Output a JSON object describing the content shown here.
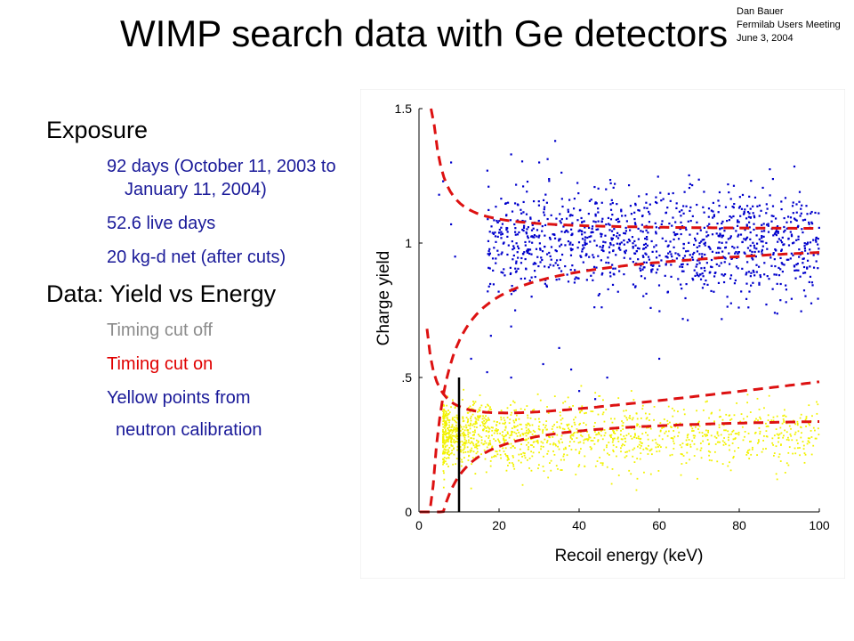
{
  "header": {
    "title": "WIMP search data with Ge detectors",
    "author": "Dan Bauer",
    "event": "Fermilab Users Meeting",
    "date": "June 3, 2004"
  },
  "bullets": {
    "exposure_heading": "Exposure",
    "exposure_items": [
      "92 days (October 11, 2003 to  January 11, 2004)",
      "52.6 live days",
      "20 kg-d net (after cuts)"
    ],
    "data_heading": "Data: Yield vs Energy",
    "timing_off": "Timing cut off",
    "timing_on": "Timing cut on",
    "yellow_line1": "Yellow points from",
    "yellow_line2": "neutron calibration"
  },
  "colors": {
    "heading": "#000000",
    "blue_text": "#1a1a99",
    "gray_text": "#8c8c8c",
    "red_text": "#e00000",
    "electron_points": "#0000cc",
    "neutron_points": "#f2f200",
    "band_lines": "#dd1111",
    "threshold_line": "#000000"
  },
  "chart_data": {
    "type": "scatter",
    "title": "",
    "xlabel": "Recoil energy (keV)",
    "ylabel": "Charge yield",
    "xlim": [
      0,
      100
    ],
    "ylim": [
      0,
      1.5
    ],
    "xticks": [
      "0",
      "20",
      "40",
      "60",
      "80",
      "100"
    ],
    "yticks": [
      "0",
      ".5",
      "1",
      "1.5"
    ],
    "grid": false,
    "threshold_keV": 10,
    "series": [
      {
        "kind": "points",
        "color": "#0000cc",
        "values": [
          {
            "x": 34,
            "y": 1.38
          },
          {
            "x": 23,
            "y": 1.33
          },
          {
            "x": 30,
            "y": 1.3
          },
          {
            "x": 6,
            "y": 1.23
          },
          {
            "x": 8,
            "y": 1.07
          },
          {
            "x": 9,
            "y": 0.95
          },
          {
            "x": 24,
            "y": 0.75
          },
          {
            "x": 23,
            "y": 0.69
          },
          {
            "x": 35,
            "y": 0.61
          },
          {
            "x": 31,
            "y": 0.55
          },
          {
            "x": 38,
            "y": 0.53
          },
          {
            "x": 23,
            "y": 0.5
          },
          {
            "x": 47,
            "y": 0.5
          },
          {
            "x": 40,
            "y": 0.45
          },
          {
            "x": 13,
            "y": 0.57
          },
          {
            "x": 17,
            "y": 0.52
          },
          {
            "x": 60,
            "y": 0.57
          },
          {
            "x": 44,
            "y": 0.42
          },
          {
            "x": 8,
            "y": 1.3
          },
          {
            "x": 5,
            "y": 1.18
          }
        ]
      },
      {
        "kind": "points",
        "name": "electron recoils",
        "color": "#0000cc",
        "x_range": [
          17,
          100
        ],
        "y_center": 1.0,
        "y_spread": 0.11,
        "count": 1150
      },
      {
        "kind": "points",
        "name": "neutron calibration",
        "color": "#f2f200",
        "x_range": [
          6,
          100
        ],
        "y_center": 0.28,
        "y_spread": 0.06,
        "count": 1400
      }
    ]
  }
}
